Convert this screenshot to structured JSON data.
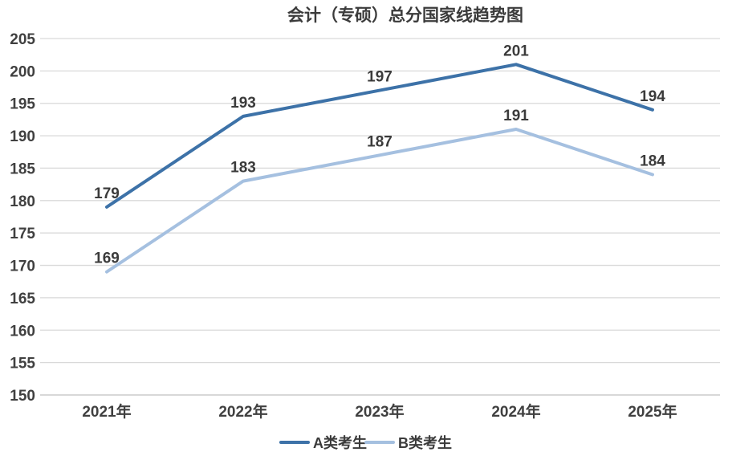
{
  "chart_data": {
    "type": "line",
    "title": "会计（专硕）总分国家线趋势图",
    "categories": [
      "2021年",
      "2022年",
      "2023年",
      "2024年",
      "2025年"
    ],
    "series": [
      {
        "name": "A类考生",
        "color": "#3d72a8",
        "values": [
          179,
          193,
          197,
          201,
          194
        ]
      },
      {
        "name": "B类考生",
        "color": "#a5c0e0",
        "values": [
          169,
          183,
          187,
          191,
          184
        ]
      }
    ],
    "xlabel": "",
    "ylabel": "",
    "ylim": [
      150,
      205
    ],
    "ytick_step": 5,
    "yticks": [
      205,
      200,
      195,
      190,
      185,
      180,
      175,
      170,
      165,
      160,
      155,
      150
    ],
    "grid": true,
    "data_labels": true,
    "legend_position": "bottom",
    "colors": {
      "background": "#ffffff",
      "title_text": "#3b3b3b",
      "tick_text": "#404040",
      "data_label_text": "#3b3b3b",
      "gridline": "#d9d9d9",
      "baseline": "#c0c0c0"
    }
  }
}
